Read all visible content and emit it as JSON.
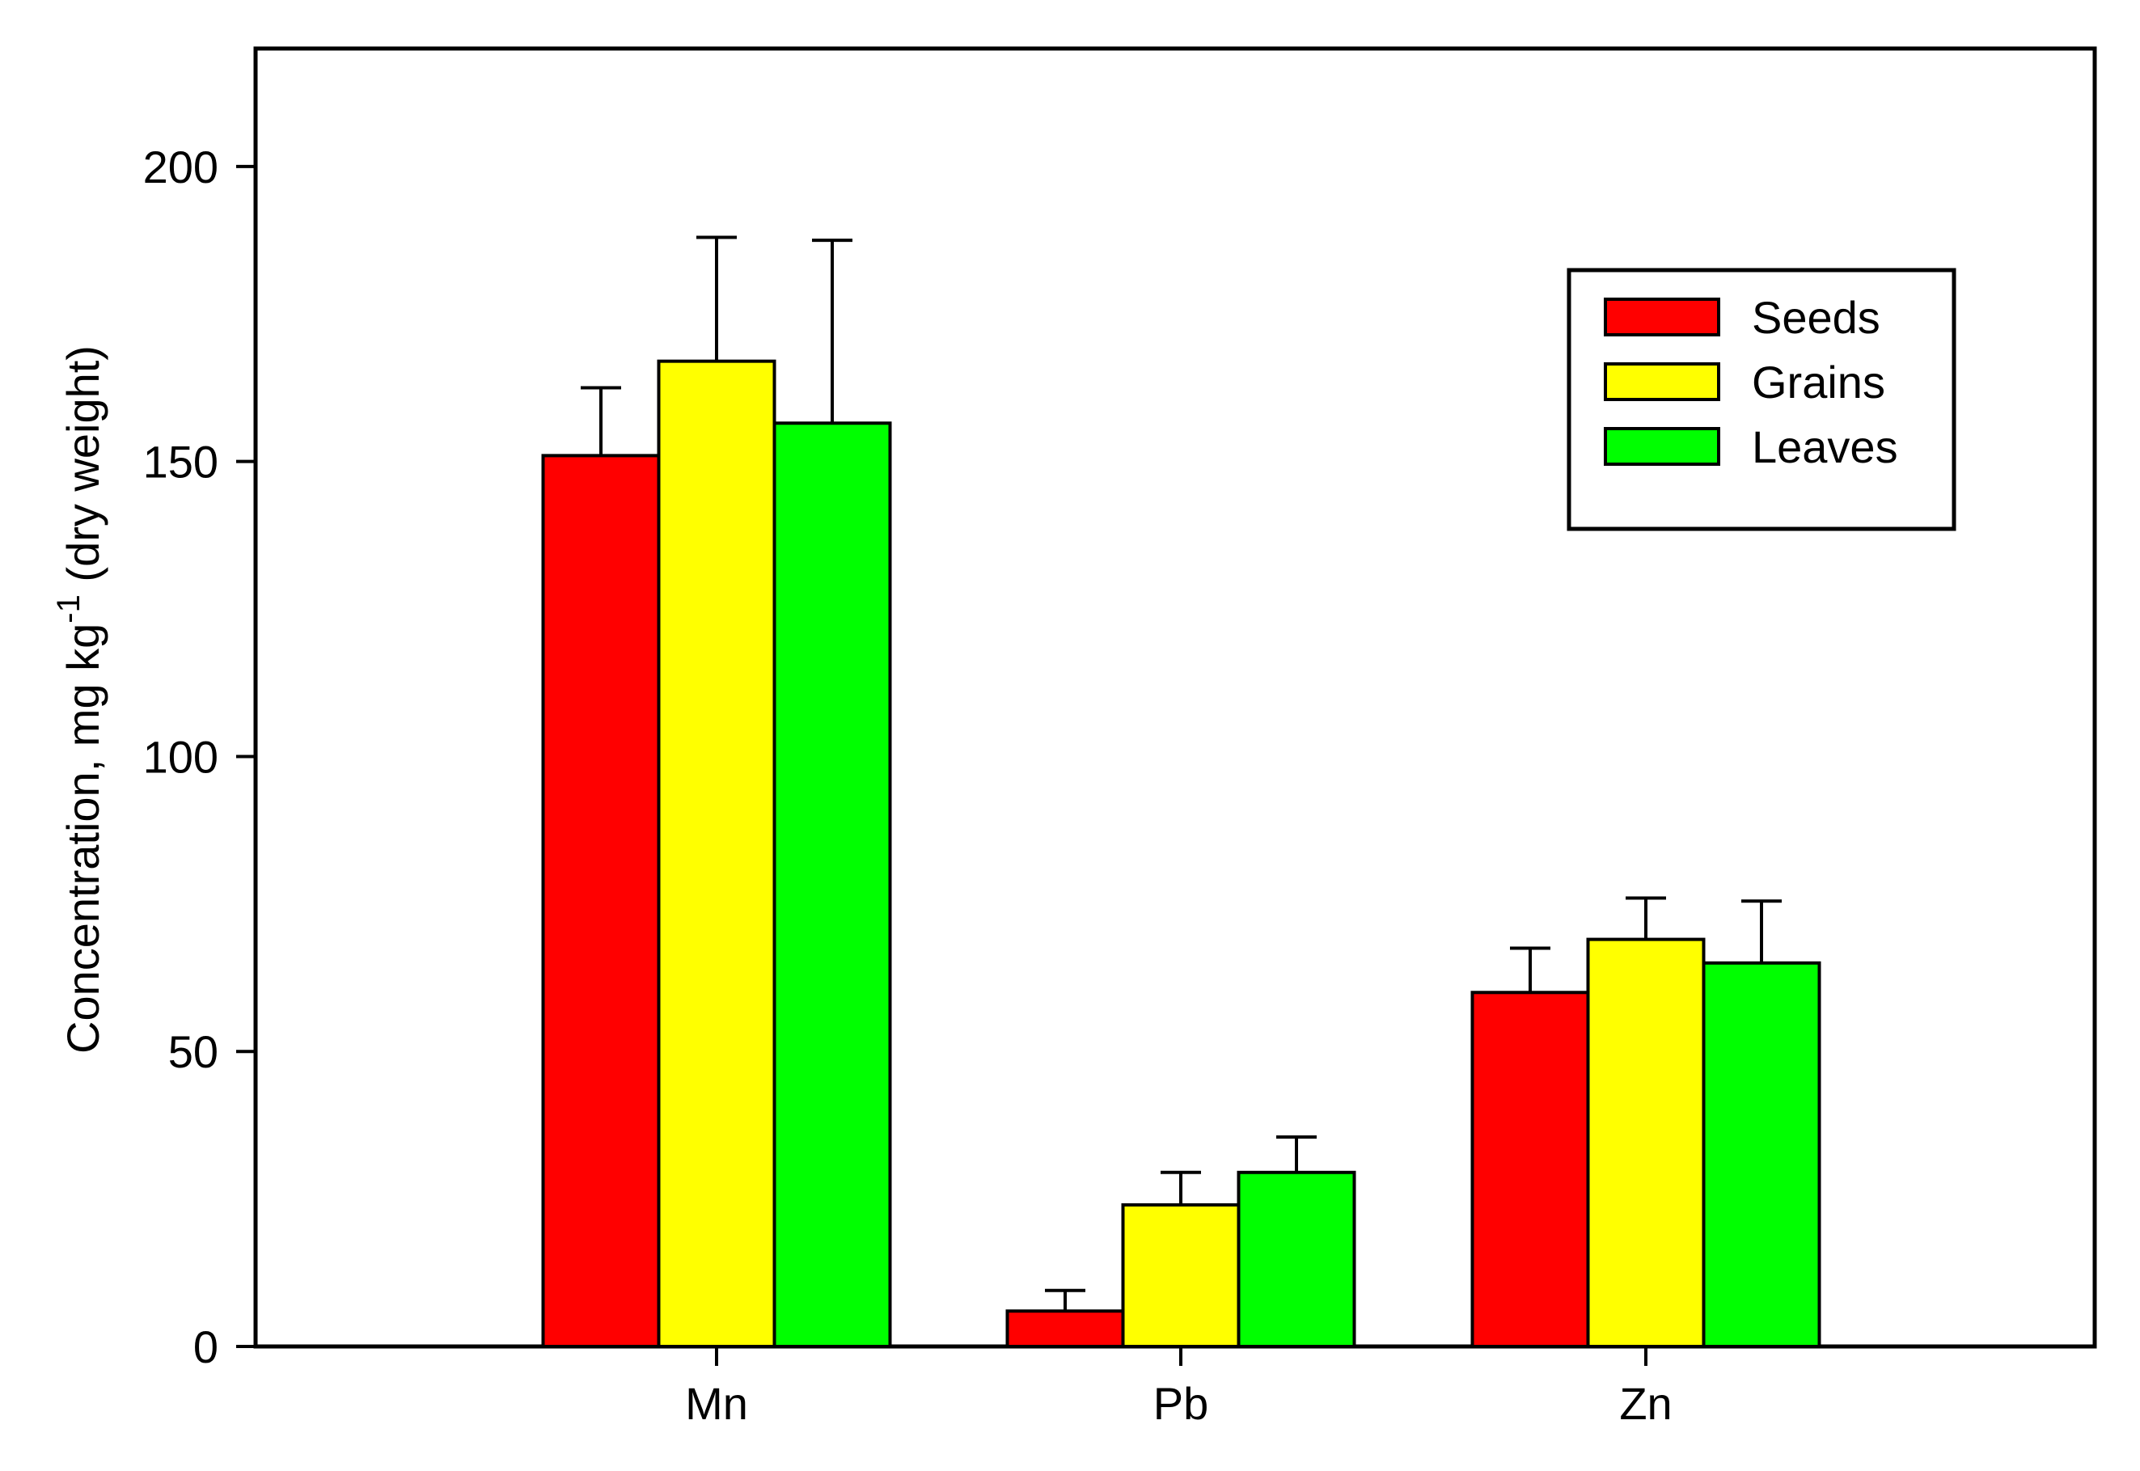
{
  "chart_data": {
    "type": "bar",
    "categories": [
      "Mn",
      "Pb",
      "Zn"
    ],
    "series": [
      {
        "name": "Seeds",
        "color": "#ff0000",
        "values": [
          151,
          6,
          60
        ],
        "errors": [
          11.5,
          3.5,
          7.5
        ]
      },
      {
        "name": "Grains",
        "color": "#ffff00",
        "values": [
          167,
          24,
          69
        ],
        "errors": [
          21,
          5.5,
          7
        ]
      },
      {
        "name": "Leaves",
        "color": "#00ff00",
        "values": [
          156.5,
          29.5,
          65
        ],
        "errors": [
          31,
          6,
          10.5
        ]
      }
    ],
    "ylabel": "Concentration, mg kg",
    "ylabel_superscript": "-1",
    "ylabel_suffix": " (dry weight)",
    "ylim": [
      0,
      220
    ],
    "yticks": [
      "0",
      "50",
      "100",
      "150",
      "200"
    ],
    "legend_position": "top-right",
    "grid": false
  }
}
